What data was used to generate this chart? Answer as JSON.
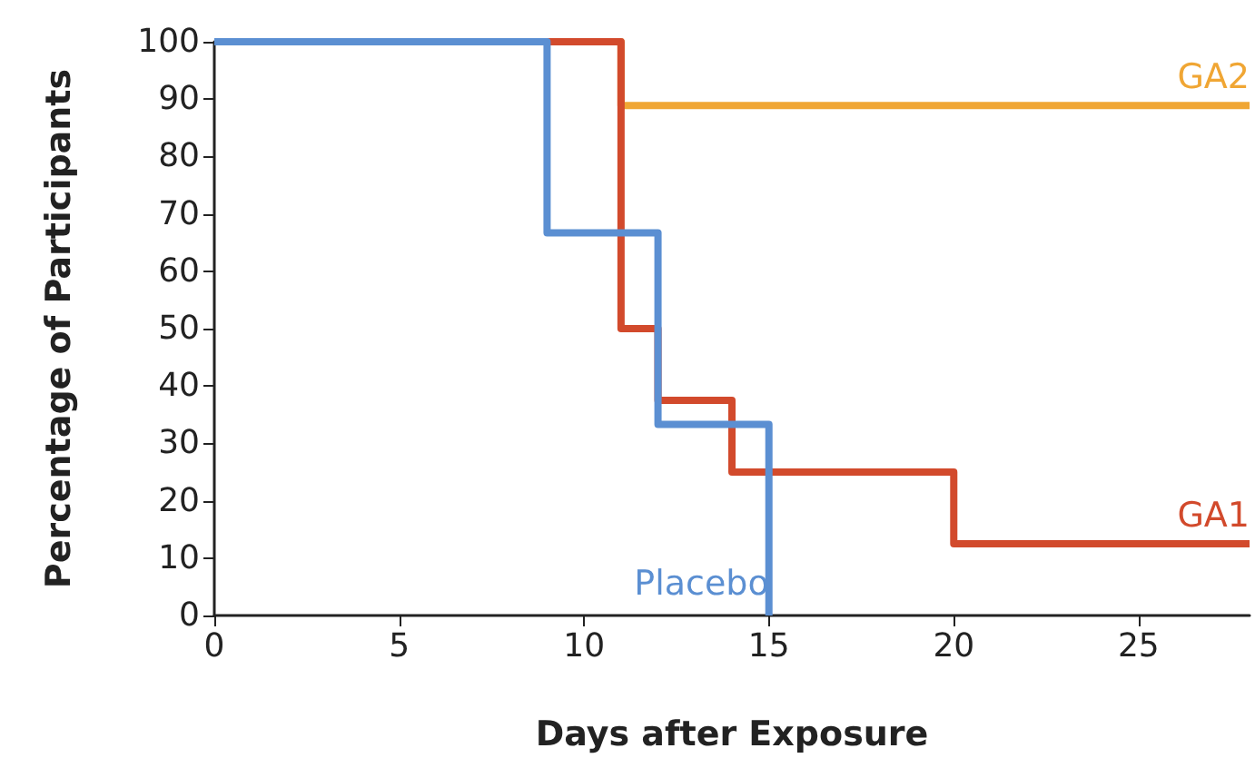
{
  "chart_data": {
    "type": "step",
    "xlabel": "Days after Exposure",
    "ylabel": "Percentage of Participants",
    "xlim": [
      0,
      28
    ],
    "xticks": [
      0,
      5,
      10,
      15,
      20,
      25
    ],
    "ylim": [
      0,
      100
    ],
    "yticks": [
      0,
      10,
      20,
      30,
      40,
      50,
      60,
      70,
      80,
      90,
      100
    ],
    "grid": false,
    "legend": false,
    "marker": "none",
    "line_style": "solid",
    "series": [
      {
        "name": "GA2",
        "color": "#f0a634",
        "x": [
          0,
          11,
          28
        ],
        "values": [
          100,
          88.9,
          88.9
        ]
      },
      {
        "name": "GA1",
        "color": "#d24a2c",
        "x": [
          0,
          11,
          12,
          14,
          20,
          28
        ],
        "values": [
          100,
          50,
          37.5,
          25,
          12.5,
          12.5
        ]
      },
      {
        "name": "Placebo",
        "color": "#5b8fd2",
        "x": [
          0,
          9,
          12,
          15
        ],
        "values": [
          100,
          66.7,
          33.3,
          0
        ]
      }
    ]
  }
}
